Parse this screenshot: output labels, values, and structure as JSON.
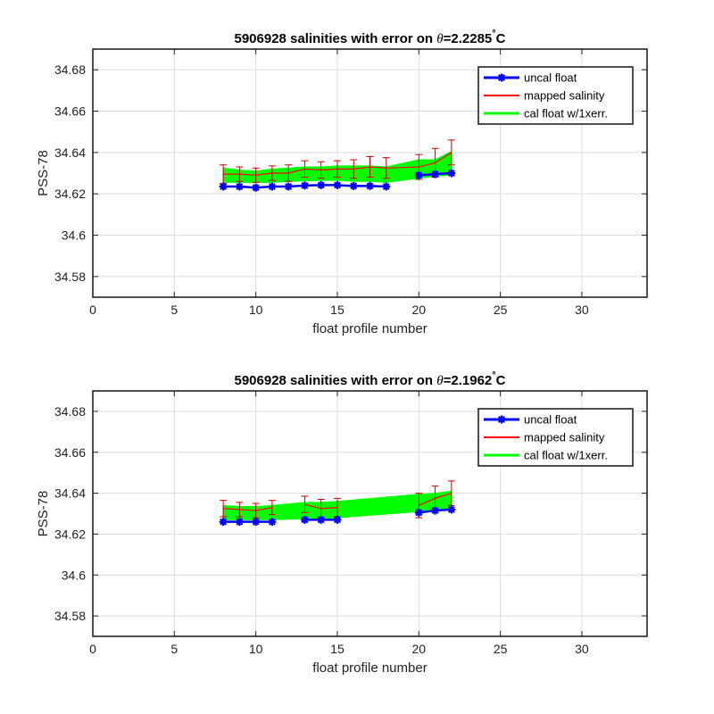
{
  "chart_data": [
    {
      "type": "line",
      "title_prefix": "5906928 salinities with error on ",
      "title_theta": "θ",
      "title_value": "=2.2285",
      "title_degree": "°",
      "title_unit": "C",
      "xlabel": "float profile number",
      "ylabel": "PSS-78",
      "xlim": [
        0,
        34
      ],
      "ylim": [
        34.57,
        34.69
      ],
      "xticks": [
        0,
        5,
        10,
        15,
        20,
        25,
        30
      ],
      "yticks": [
        34.58,
        34.6,
        34.62,
        34.64,
        34.66,
        34.68
      ],
      "ytick_labels": [
        "34.58",
        "34.6",
        "34.62",
        "34.64",
        "34.66",
        "34.68"
      ],
      "grid": true,
      "legend_position": "top-right",
      "legend": [
        "uncal float",
        "mapped salinity",
        "cal float w/1xerr."
      ],
      "colors": {
        "uncal": "#0000ff",
        "mapped": "#ff0000",
        "band": "#00ff00",
        "error": "#cc0000"
      },
      "series": [
        {
          "name": "uncal float",
          "segments": [
            {
              "x": [
                8,
                9,
                10,
                11,
                12,
                13,
                14,
                15,
                16,
                17,
                18
              ],
              "y": [
                34.6235,
                34.6235,
                34.623,
                34.6235,
                34.6235,
                34.624,
                34.6242,
                34.6242,
                34.6238,
                34.6238,
                34.6235
              ]
            },
            {
              "x": [
                20,
                21,
                22
              ],
              "y": [
                34.629,
                34.6295,
                34.63
              ]
            }
          ]
        },
        {
          "name": "mapped salinity",
          "segments": [
            {
              "x": [
                8,
                9,
                10,
                11,
                12,
                13,
                14,
                15,
                16,
                17,
                18,
                20,
                21,
                22
              ],
              "y": [
                34.6295,
                34.6295,
                34.629,
                34.63,
                34.63,
                34.632,
                34.6315,
                34.632,
                34.632,
                34.633,
                34.6325,
                34.633,
                34.635,
                34.64
              ]
            }
          ],
          "error": [
            0.0045,
            0.0035,
            0.0035,
            0.0035,
            0.004,
            0.004,
            0.004,
            0.004,
            0.0045,
            0.005,
            0.005,
            0.006,
            0.007,
            0.006
          ]
        },
        {
          "name": "cal float w/1xerr.",
          "band": {
            "x": [
              8,
              9,
              10,
              11,
              12,
              13,
              14,
              15,
              16,
              17,
              18,
              20,
              21,
              22
            ],
            "upper": [
              34.6325,
              34.6315,
              34.631,
              34.632,
              34.6325,
              34.633,
              34.633,
              34.6335,
              34.6335,
              34.6335,
              34.633,
              34.6365,
              34.6365,
              34.6405
            ],
            "lower": [
              34.6255,
              34.6255,
              34.6255,
              34.6255,
              34.626,
              34.6262,
              34.6265,
              34.6265,
              34.626,
              34.626,
              34.6255,
              34.6275,
              34.6285,
              34.629
            ]
          }
        }
      ]
    },
    {
      "type": "line",
      "title_prefix": "5906928 salinities with error on ",
      "title_theta": "θ",
      "title_value": "=2.1962",
      "title_degree": "°",
      "title_unit": "C",
      "xlabel": "float profile number",
      "ylabel": "PSS-78",
      "xlim": [
        0,
        34
      ],
      "ylim": [
        34.57,
        34.69
      ],
      "xticks": [
        0,
        5,
        10,
        15,
        20,
        25,
        30
      ],
      "yticks": [
        34.58,
        34.6,
        34.62,
        34.64,
        34.66,
        34.68
      ],
      "ytick_labels": [
        "34.58",
        "34.6",
        "34.62",
        "34.64",
        "34.66",
        "34.68"
      ],
      "grid": true,
      "legend_position": "top-right",
      "legend": [
        "uncal float",
        "mapped salinity",
        "cal float w/1xerr."
      ],
      "colors": {
        "uncal": "#0000ff",
        "mapped": "#ff0000",
        "band": "#00ff00",
        "error": "#cc0000"
      },
      "series": [
        {
          "name": "uncal float",
          "segments": [
            {
              "x": [
                8,
                9,
                10,
                11
              ],
              "y": [
                34.626,
                34.626,
                34.626,
                34.626
              ]
            },
            {
              "x": [
                13,
                14,
                15
              ],
              "y": [
                34.627,
                34.627,
                34.627
              ]
            },
            {
              "x": [
                20,
                21,
                22
              ],
              "y": [
                34.6305,
                34.6315,
                34.632
              ]
            }
          ]
        },
        {
          "name": "mapped salinity",
          "segments": [
            {
              "x": [
                8,
                9,
                10,
                11
              ],
              "y": [
                34.6325,
                34.632,
                34.6315,
                34.633
              ]
            },
            {
              "x": [
                13,
                14,
                15
              ],
              "y": [
                34.6345,
                34.6325,
                34.633
              ]
            },
            {
              "x": [
                20,
                21,
                22
              ],
              "y": [
                34.634,
                34.6375,
                34.64
              ]
            }
          ],
          "error": [
            0.004,
            0.0035,
            0.0035,
            0.0035,
            0.004,
            0.0045,
            0.0045,
            0.006,
            0.006,
            0.006
          ]
        },
        {
          "name": "cal float w/1xerr.",
          "band": {
            "x": [
              8,
              9,
              10,
              11,
              13,
              14,
              15,
              20,
              21,
              22
            ],
            "upper": [
              34.634,
              34.6335,
              34.6335,
              34.634,
              34.6355,
              34.6355,
              34.636,
              34.6395,
              34.64,
              34.641
            ],
            "lower": [
              34.627,
              34.627,
              34.627,
              34.627,
              34.6275,
              34.6275,
              34.628,
              34.631,
              34.632,
              34.6325
            ]
          }
        }
      ]
    }
  ]
}
